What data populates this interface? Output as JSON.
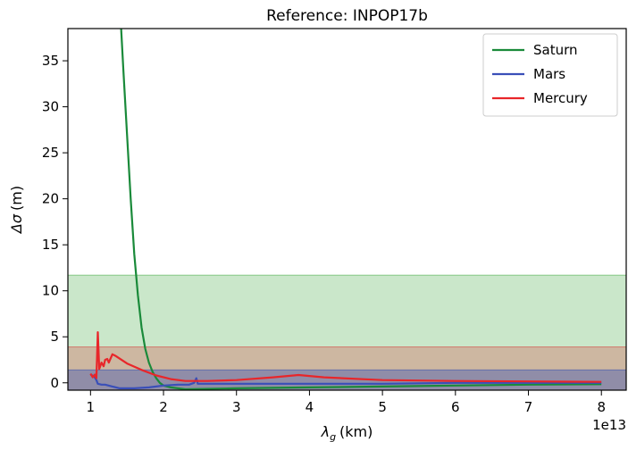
{
  "chart_data": {
    "type": "line",
    "title": "Reference: INPOP17b",
    "xlabel_symbol": "λ",
    "xlabel_sub": "g",
    "xlabel_unit": "(km)",
    "ylabel_symbol": "Δσ",
    "ylabel_unit": "(m)",
    "x_offset_label": "1e13",
    "xlim": [
      0.69,
      8.34
    ],
    "ylim": [
      -0.8,
      38.5
    ],
    "xticks": [
      1,
      2,
      3,
      4,
      5,
      6,
      7,
      8
    ],
    "yticks": [
      0,
      5,
      10,
      15,
      20,
      25,
      30,
      35
    ],
    "legend_position": "top-right",
    "bands": [
      {
        "y0": -0.8,
        "y1": 11.7,
        "color": "#2ca02c",
        "opacity": 0.25
      },
      {
        "y0": -0.8,
        "y1": 3.9,
        "color": "#d62728",
        "opacity": 0.25
      },
      {
        "y0": -0.8,
        "y1": 1.4,
        "color": "#1f3fb4",
        "opacity": 0.35
      }
    ],
    "series": [
      {
        "name": "Saturn",
        "color": "#1a8a3a",
        "points": [
          [
            1.42,
            38.5
          ],
          [
            1.45,
            34
          ],
          [
            1.5,
            27
          ],
          [
            1.55,
            20
          ],
          [
            1.6,
            14
          ],
          [
            1.65,
            9.5
          ],
          [
            1.7,
            6
          ],
          [
            1.75,
            3.7
          ],
          [
            1.8,
            2.2
          ],
          [
            1.85,
            1.2
          ],
          [
            1.9,
            0.5
          ],
          [
            1.95,
            0
          ],
          [
            2.0,
            -0.3
          ],
          [
            2.1,
            -0.5
          ],
          [
            2.3,
            -0.7
          ],
          [
            3.0,
            -0.6
          ],
          [
            4.0,
            -0.5
          ],
          [
            5.0,
            -0.4
          ],
          [
            6.0,
            -0.3
          ],
          [
            7.0,
            -0.2
          ],
          [
            8.0,
            -0.15
          ]
        ]
      },
      {
        "name": "Mars",
        "color": "#3a4fb8",
        "points": [
          [
            1.0,
            0.9
          ],
          [
            1.05,
            0.7
          ],
          [
            1.08,
            0.3
          ],
          [
            1.1,
            -0.1
          ],
          [
            1.15,
            -0.2
          ],
          [
            1.2,
            -0.2
          ],
          [
            1.3,
            -0.4
          ],
          [
            1.4,
            -0.6
          ],
          [
            1.6,
            -0.6
          ],
          [
            1.8,
            -0.5
          ],
          [
            2.0,
            -0.3
          ],
          [
            2.2,
            -0.2
          ],
          [
            2.35,
            -0.2
          ],
          [
            2.42,
            0.0
          ],
          [
            2.45,
            0.5
          ],
          [
            2.47,
            -0.1
          ],
          [
            2.6,
            -0.1
          ],
          [
            3.0,
            -0.1
          ],
          [
            4.0,
            -0.1
          ],
          [
            5.0,
            -0.1
          ],
          [
            6.0,
            0.0
          ],
          [
            7.0,
            0.0
          ],
          [
            8.0,
            0.0
          ]
        ]
      },
      {
        "name": "Mercury",
        "color": "#e8262a",
        "points": [
          [
            1.0,
            1.0
          ],
          [
            1.03,
            0.6
          ],
          [
            1.06,
            0.9
          ],
          [
            1.08,
            0.5
          ],
          [
            1.1,
            5.5
          ],
          [
            1.12,
            1.5
          ],
          [
            1.15,
            2.2
          ],
          [
            1.18,
            1.8
          ],
          [
            1.2,
            2.5
          ],
          [
            1.23,
            2.6
          ],
          [
            1.25,
            2.2
          ],
          [
            1.3,
            3.1
          ],
          [
            1.35,
            2.9
          ],
          [
            1.5,
            2.1
          ],
          [
            1.7,
            1.4
          ],
          [
            1.9,
            0.8
          ],
          [
            2.1,
            0.4
          ],
          [
            2.3,
            0.2
          ],
          [
            2.6,
            0.2
          ],
          [
            3.0,
            0.3
          ],
          [
            3.5,
            0.6
          ],
          [
            3.85,
            0.85
          ],
          [
            4.2,
            0.6
          ],
          [
            5.0,
            0.3
          ],
          [
            6.0,
            0.2
          ],
          [
            7.0,
            0.15
          ],
          [
            8.0,
            0.1
          ]
        ]
      }
    ]
  }
}
